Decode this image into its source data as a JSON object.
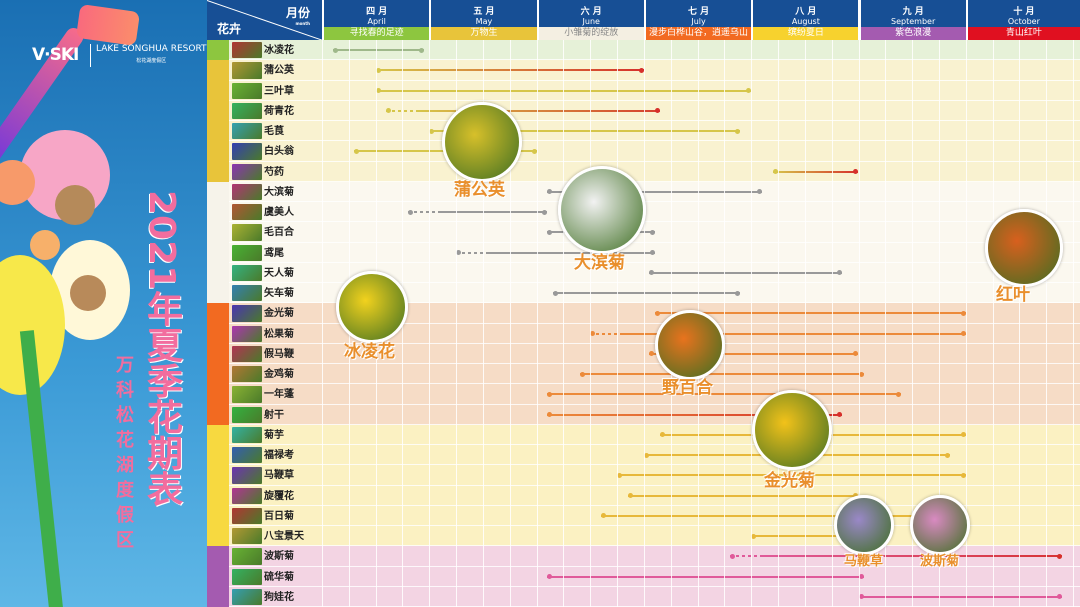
{
  "brand": {
    "logo": "V·SKI",
    "resort": "LAKE SONGHUA RESORT",
    "resort_cn": "松花湖度假区"
  },
  "title": "2021年夏季花期表",
  "subtitle": "万科松花湖度假区",
  "header": {
    "month_label": "月份",
    "month_en": "month",
    "flower_label": "花卉"
  },
  "months": [
    {
      "cn": "四 月",
      "en": "April",
      "theme": "寻找春的足迹",
      "color": "#8dc63f"
    },
    {
      "cn": "五 月",
      "en": "May",
      "theme": "万物生",
      "color": "#e8c43a"
    },
    {
      "cn": "六 月",
      "en": "June",
      "theme": "小雏菊的绽放",
      "color": "#f4efe2"
    },
    {
      "cn": "七 月",
      "en": "July",
      "theme": "漫步白桦山谷，逍遥乌山野趣",
      "color": "#f26a21"
    },
    {
      "cn": "八 月",
      "en": "August",
      "theme": "缤纷夏日",
      "color": "#f7d22e"
    },
    {
      "cn": "九 月",
      "en": "September",
      "theme": "紫色浪漫",
      "color": "#a45bb0"
    },
    {
      "cn": "十 月",
      "en": "October",
      "theme": "青山红叶",
      "color": "#e01020"
    }
  ],
  "groups": [
    {
      "color": "#8dc63f",
      "bg": "#e6f1d8",
      "line": "#9fb88a",
      "flowers": [
        {
          "name": "冰凌花",
          "start": 4.1,
          "end": 4.95
        }
      ]
    },
    {
      "color": "#e8c43a",
      "bg": "#f9f2d0",
      "line": "#d6c64a",
      "flowers": [
        {
          "name": "蒲公英",
          "start": 4.5,
          "end": 7.0,
          "end_color": "#d6302b"
        },
        {
          "name": "三叶草",
          "start": 4.5,
          "end": 8.0
        },
        {
          "name": "荷青花",
          "start": 4.6,
          "end": 7.15,
          "dashed_start": true,
          "end_color": "#d6302b"
        },
        {
          "name": "毛茛",
          "start": 5.0,
          "end": 7.9
        },
        {
          "name": "白头翁",
          "start": 4.3,
          "end": 6.0
        },
        {
          "name": "芍药",
          "start": 8.2,
          "end": 9.0,
          "end_color": "#d6302b"
        }
      ]
    },
    {
      "color": "#f6f3ea",
      "bg": "#fbf8ef",
      "line": "#999999",
      "flowers": [
        {
          "name": "大滨菊",
          "start": 6.1,
          "end": 8.1
        },
        {
          "name": "虞美人",
          "start": 4.8,
          "end": 6.1,
          "dashed_start": true
        },
        {
          "name": "毛百合",
          "start": 6.1,
          "end": 7.1
        },
        {
          "name": "鸢尾",
          "start": 5.25,
          "end": 7.1,
          "dashed_start": true
        },
        {
          "name": "天人菊",
          "start": 7.05,
          "end": 8.85
        },
        {
          "name": "矢车菊",
          "start": 6.15,
          "end": 7.9
        }
      ]
    },
    {
      "color": "#f26a21",
      "bg": "#f6dcc6",
      "line": "#ec8a3a",
      "flowers": [
        {
          "name": "金光菊",
          "start": 7.1,
          "end": 10.0
        },
        {
          "name": "松果菊",
          "start": 6.5,
          "end": 10.0,
          "dashed_start": true
        },
        {
          "name": "假马鞭",
          "start": 7.05,
          "end": 9.0
        },
        {
          "name": "金鸡菊",
          "start": 6.4,
          "end": 9.05
        },
        {
          "name": "一年蓬",
          "start": 6.1,
          "end": 9.4
        },
        {
          "name": "射干",
          "start": 6.1,
          "end": 8.85,
          "end_color": "#d6302b"
        }
      ]
    },
    {
      "color": "#f7d940",
      "bg": "#fbf1c2",
      "line": "#e7b83a",
      "flowers": [
        {
          "name": "菊芋",
          "start": 7.15,
          "end": 10.0
        },
        {
          "name": "福禄考",
          "start": 7.0,
          "end": 9.85
        },
        {
          "name": "马鞭草",
          "start": 6.75,
          "end": 10.0
        },
        {
          "name": "旋覆花",
          "start": 6.85,
          "end": 9.0
        },
        {
          "name": "百日菊",
          "start": 6.6,
          "end": 9.85
        },
        {
          "name": "八宝景天",
          "start": 8.0,
          "end": 9.2
        }
      ]
    },
    {
      "color": "#a45bb0",
      "bg": "#f3d4e3",
      "line": "#e05a9a",
      "flowers": [
        {
          "name": "波斯菊",
          "start": 7.8,
          "end": 10.9,
          "dashed_start": true,
          "end_color": "#d6302b"
        },
        {
          "name": "硫华菊",
          "start": 6.1,
          "end": 9.05
        },
        {
          "name": "狗娃花",
          "start": 9.0,
          "end": 10.9
        }
      ]
    }
  ],
  "callouts": [
    {
      "label": "蒲公英",
      "color": "#d7c02a"
    },
    {
      "label": "大滨菊",
      "color": "#f2f2f2"
    },
    {
      "label": "冰凌花",
      "color": "#f2d21e"
    },
    {
      "label": "野百合",
      "color": "#e8731e"
    },
    {
      "label": "金光菊",
      "color": "#f2c21a"
    },
    {
      "label": "马鞭草",
      "color": "#9a88c8"
    },
    {
      "label": "波斯菊",
      "color": "#d98ac2"
    },
    {
      "label": "红叶",
      "color": "#d8601e"
    }
  ]
}
